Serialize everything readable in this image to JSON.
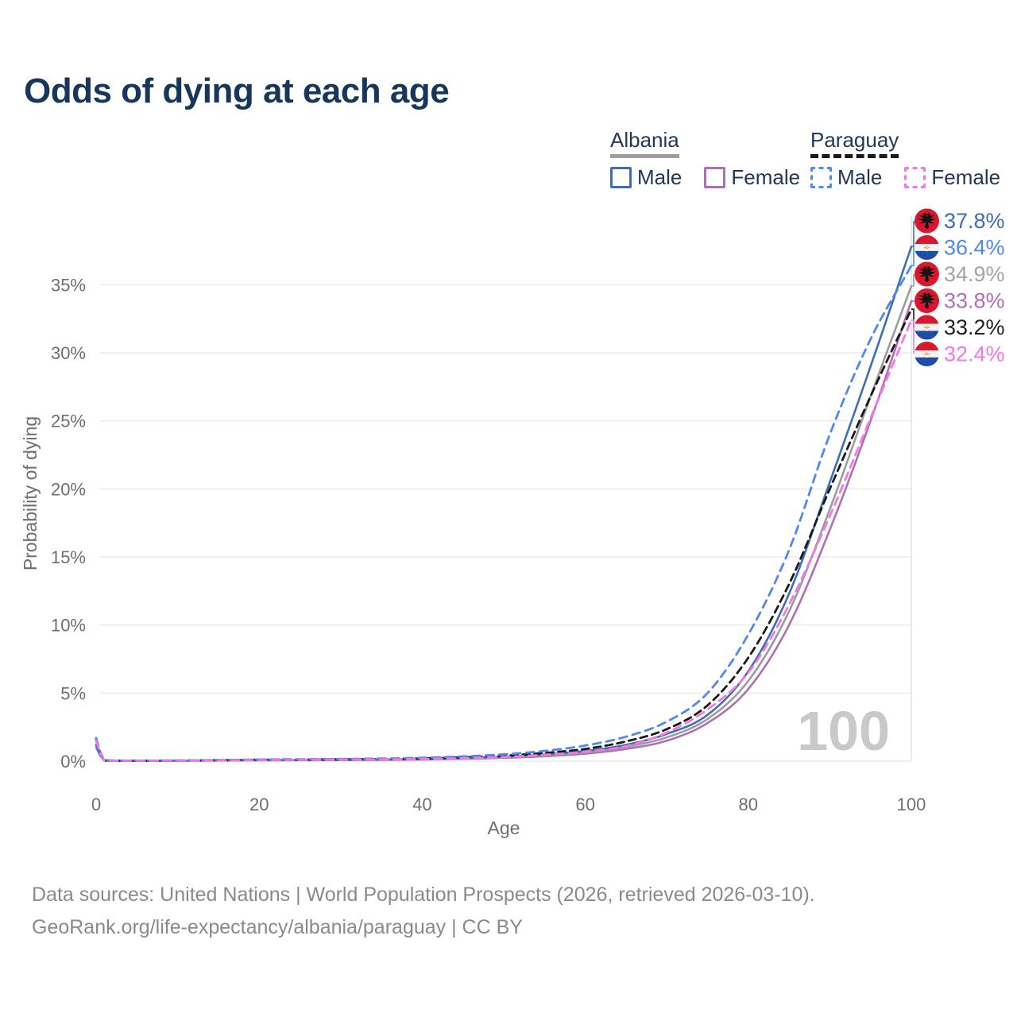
{
  "page": {
    "title": "Odds of dying at each age",
    "background": "#ffffff"
  },
  "legend": {
    "groups": [
      {
        "label": "Albania",
        "underline_style": "solid",
        "underline_color": "#9e9e9e",
        "items": [
          {
            "label": "Male",
            "color": "#3e6fb4",
            "dash": false
          },
          {
            "label": "Female",
            "color": "#b06fb2",
            "dash": false
          }
        ]
      },
      {
        "label": "Paraguay",
        "underline_style": "dashed",
        "underline_color": "#1a1a1a",
        "items": [
          {
            "label": "Male",
            "color": "#4f88ef",
            "dash": true
          },
          {
            "label": "Female",
            "color": "#f576e6",
            "dash": true
          }
        ]
      }
    ]
  },
  "chart_data": {
    "type": "line",
    "title": "Odds of dying at each age",
    "xlabel": "Age",
    "ylabel": "Probability of dying",
    "x_ticks": [
      0,
      20,
      40,
      60,
      80,
      100
    ],
    "y_tick_values": [
      0,
      5,
      10,
      15,
      20,
      25,
      30,
      35
    ],
    "y_tick_labels": [
      "0%",
      "5%",
      "10%",
      "15%",
      "20%",
      "25%",
      "30%",
      "35%"
    ],
    "xlim": [
      0,
      100
    ],
    "ylim_pct": [
      0,
      38.5
    ],
    "grid": "horizontal",
    "legend_position": "top-right",
    "hover_age_indicator": 100,
    "watermark": "100",
    "ages": [
      0,
      1,
      5,
      10,
      20,
      30,
      40,
      50,
      55,
      60,
      65,
      70,
      75,
      80,
      85,
      90,
      95,
      100
    ],
    "series": [
      {
        "name": "Albania Female",
        "country": "Albania",
        "sex": "female",
        "flag": "albania",
        "color": "#b06fb2",
        "dash": null,
        "values": [
          1.0,
          0.04,
          0.025,
          0.03,
          0.06,
          0.08,
          0.12,
          0.24,
          0.36,
          0.55,
          0.9,
          1.5,
          2.8,
          5.3,
          10.0,
          17.0,
          25.0,
          33.8
        ],
        "end_label": "33.8%",
        "end_label_color": "#b06fb2"
      },
      {
        "name": "Albania (both sexes)",
        "country": "Albania",
        "sex": "both",
        "flag": "albania",
        "color": "#9c9c9c",
        "dash": null,
        "values": [
          1.1,
          0.045,
          0.028,
          0.035,
          0.07,
          0.09,
          0.14,
          0.28,
          0.43,
          0.65,
          1.05,
          1.75,
          3.1,
          5.9,
          11.0,
          18.5,
          26.8,
          34.9
        ],
        "end_label": "34.9%",
        "end_label_color": "#a4a4a4"
      },
      {
        "name": "Albania Male",
        "country": "Albania",
        "sex": "male",
        "flag": "albania",
        "color": "#3e6fb4",
        "dash": null,
        "values": [
          1.2,
          0.05,
          0.03,
          0.04,
          0.08,
          0.1,
          0.16,
          0.33,
          0.5,
          0.75,
          1.2,
          2.0,
          3.4,
          6.6,
          12.3,
          20.5,
          29.0,
          37.8
        ],
        "end_label": "37.8%",
        "end_label_color": "#3e6fb4"
      },
      {
        "name": "Paraguay (both sexes)",
        "country": "Paraguay",
        "sex": "both",
        "flag": "paraguay",
        "color": "#1a1a1a",
        "dash": "9 6",
        "values": [
          1.6,
          0.055,
          0.035,
          0.045,
          0.1,
          0.13,
          0.2,
          0.4,
          0.6,
          0.9,
          1.45,
          2.35,
          4.1,
          7.6,
          13.0,
          20.0,
          26.8,
          33.2
        ],
        "end_label": "33.2%",
        "end_label_color": "#1f1f1f"
      },
      {
        "name": "Paraguay Male",
        "country": "Paraguay",
        "sex": "male",
        "flag": "paraguay",
        "color": "#4f88ef",
        "dash": "10 7",
        "values": [
          1.7,
          0.06,
          0.04,
          0.05,
          0.12,
          0.16,
          0.25,
          0.5,
          0.75,
          1.15,
          1.8,
          2.9,
          5.0,
          9.3,
          15.5,
          24.0,
          31.0,
          36.4
        ],
        "end_label": "36.4%",
        "end_label_color": "#4f88ef"
      },
      {
        "name": "Paraguay Female",
        "country": "Paraguay",
        "sex": "female",
        "flag": "paraguay",
        "color": "#f576e6",
        "dash": "10 7",
        "values": [
          1.5,
          0.05,
          0.03,
          0.04,
          0.08,
          0.11,
          0.16,
          0.31,
          0.47,
          0.7,
          1.1,
          2.1,
          3.8,
          6.5,
          11.5,
          18.0,
          25.2,
          32.4
        ],
        "end_label": "32.4%",
        "end_label_color": "#f576e6"
      }
    ]
  },
  "footer": {
    "line1": "Data sources: United Nations | World Population Prospects (2026, retrieved 2026-03-10).",
    "line2": "GeoRank.org/life-expectancy/albania/paraguay | CC BY"
  }
}
